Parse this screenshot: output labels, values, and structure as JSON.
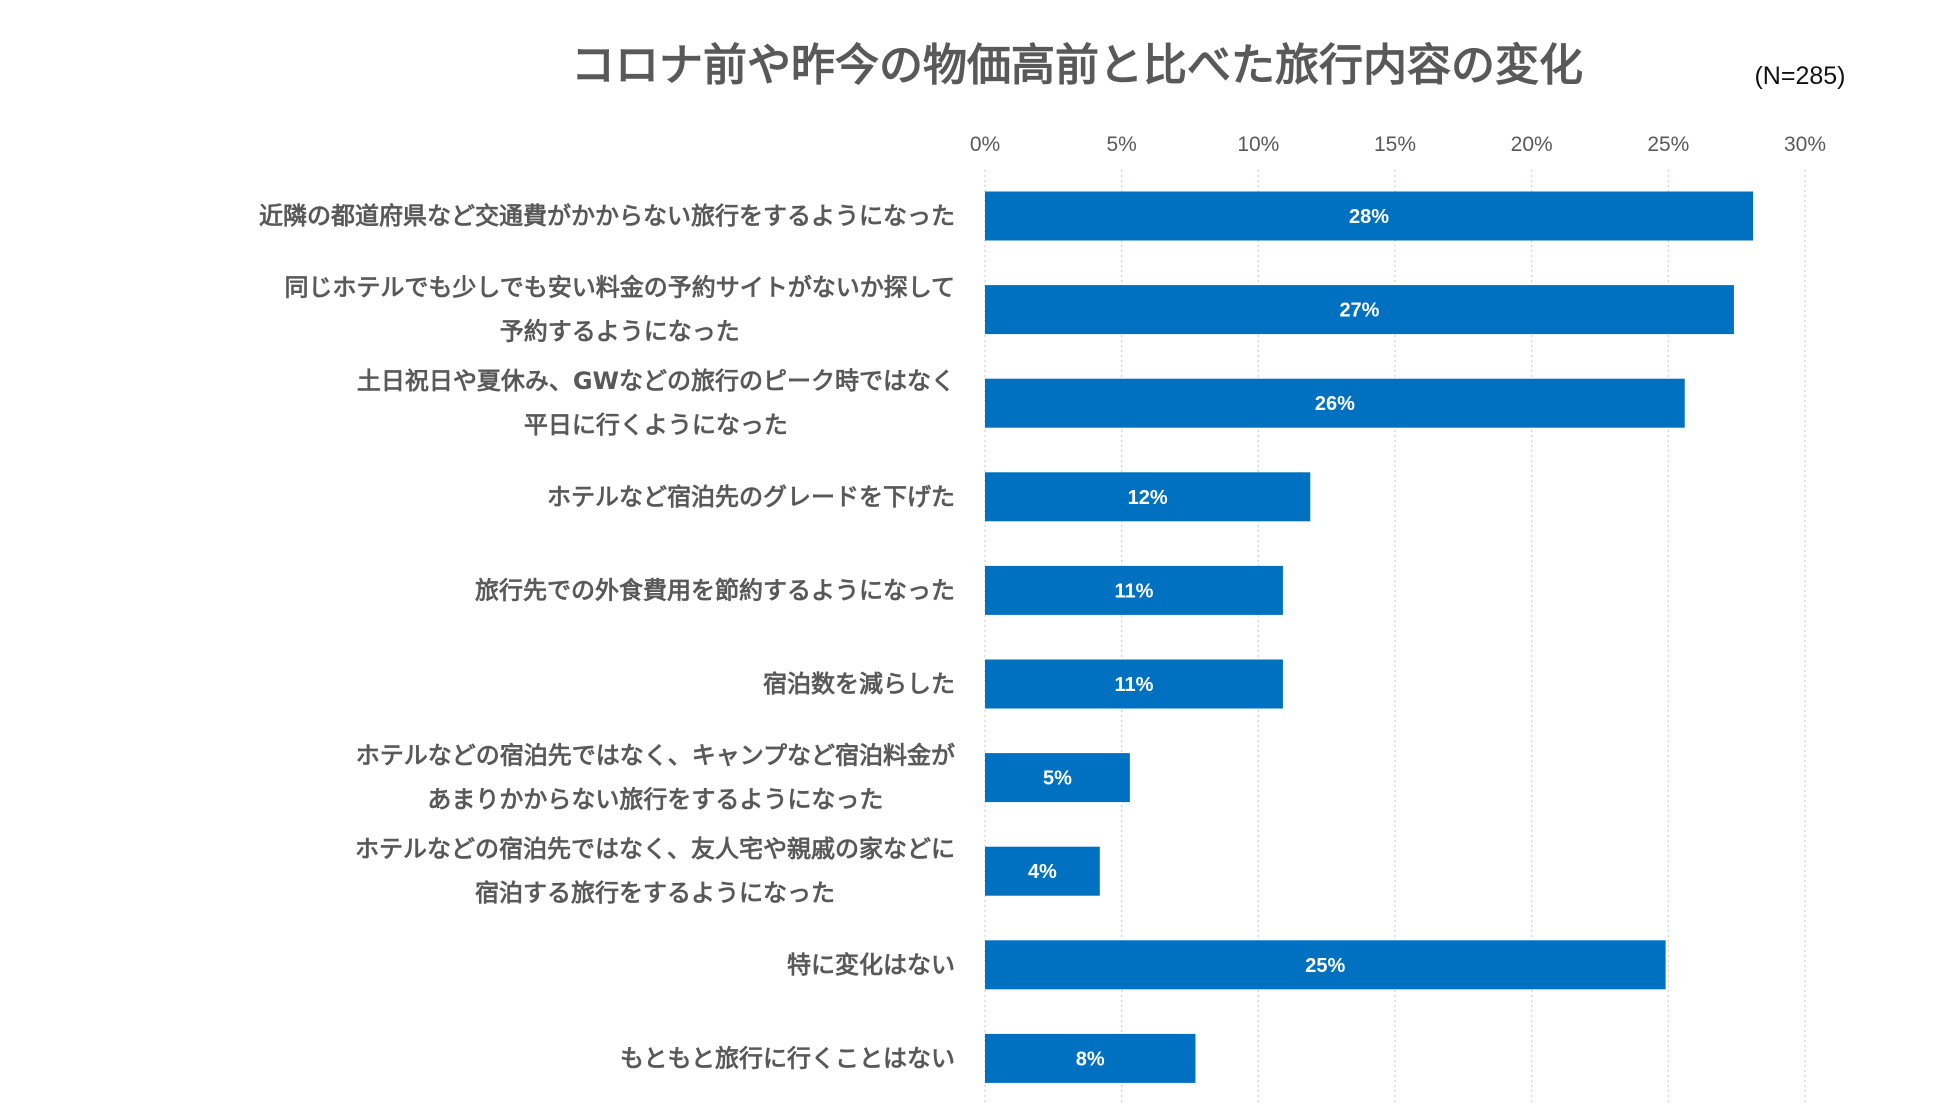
{
  "chart_data": {
    "type": "bar",
    "orientation": "horizontal",
    "title": "コロナ前や昨今の物価高前と比べた旅行内容の変化",
    "note": "(N=285)",
    "xlabel": "",
    "ylabel": "",
    "xlim": [
      0,
      30
    ],
    "tick_values": [
      0,
      5,
      10,
      15,
      20,
      25,
      30
    ],
    "tick_labels": [
      "0%",
      "5%",
      "10%",
      "15%",
      "20%",
      "25%",
      "30%"
    ],
    "grid": true,
    "bar_color": "#0070C0",
    "categories": [
      [
        "近隣の都道府県など交通費がかからない旅行をするようになった"
      ],
      [
        "同じホテルでも少しでも安い料金の予約サイトがないか探して",
        "予約するようになった"
      ],
      [
        "土日祝日や夏休み、GWなどの旅行のピーク時ではなく",
        "平日に行くようになった"
      ],
      [
        "ホテルなど宿泊先のグレードを下げた"
      ],
      [
        "旅行先での外食費用を節約するようになった"
      ],
      [
        "宿泊数を減らした"
      ],
      [
        "ホテルなどの宿泊先ではなく、キャンプなど宿泊料金が",
        "あまりかからない旅行をするようになった"
      ],
      [
        "ホテルなどの宿泊先ではなく、友人宅や親戚の家などに",
        "宿泊する旅行をするようになった"
      ],
      [
        "特に変化はない"
      ],
      [
        "もともと旅行に行くことはない"
      ]
    ],
    "values": [
      28.1,
      27.4,
      25.6,
      11.9,
      10.9,
      10.9,
      5.3,
      4.2,
      24.9,
      7.7
    ],
    "data_labels": [
      "28%",
      "27%",
      "26%",
      "12%",
      "11%",
      "11%",
      "5%",
      "4%",
      "25%",
      "8%"
    ]
  }
}
